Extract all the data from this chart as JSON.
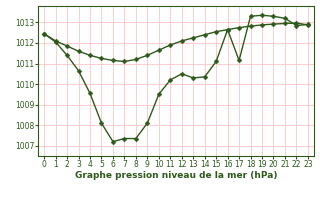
{
  "bg_color": "#ffffff",
  "grid_color": "#ffcccc",
  "line_color": "#2d5a1b",
  "line1_x": [
    0,
    1,
    2,
    3,
    4,
    5,
    6,
    7,
    8,
    9,
    10,
    11,
    12,
    13,
    14,
    15,
    16,
    17,
    18,
    19,
    20,
    21,
    22,
    23
  ],
  "line1_y": [
    1012.45,
    1012.1,
    1011.85,
    1011.6,
    1011.4,
    1011.25,
    1011.15,
    1011.1,
    1011.2,
    1011.4,
    1011.65,
    1011.9,
    1012.1,
    1012.25,
    1012.4,
    1012.55,
    1012.65,
    1012.75,
    1012.82,
    1012.88,
    1012.92,
    1012.95,
    1012.97,
    1012.88
  ],
  "line2_x": [
    0,
    1,
    2,
    3,
    4,
    5,
    6,
    7,
    8,
    9,
    10,
    11,
    12,
    13,
    14,
    15,
    16,
    17,
    18,
    19,
    20,
    21,
    22,
    23
  ],
  "line2_y": [
    1012.45,
    1012.05,
    1011.4,
    1010.65,
    1009.55,
    1008.1,
    1007.2,
    1007.35,
    1007.35,
    1008.1,
    1009.5,
    1010.2,
    1010.5,
    1010.3,
    1010.35,
    1011.1,
    1012.65,
    1011.15,
    1013.3,
    1013.35,
    1013.3,
    1013.2,
    1012.85,
    1012.9
  ],
  "xlabel": "Graphe pression niveau de la mer (hPa)",
  "ylim": [
    1006.5,
    1013.8
  ],
  "xlim": [
    -0.5,
    23.5
  ],
  "yticks": [
    1007,
    1008,
    1009,
    1010,
    1011,
    1012,
    1013
  ],
  "xticks": [
    0,
    1,
    2,
    3,
    4,
    5,
    6,
    7,
    8,
    9,
    10,
    11,
    12,
    13,
    14,
    15,
    16,
    17,
    18,
    19,
    20,
    21,
    22,
    23
  ],
  "markersize": 2.5,
  "linewidth": 1.0,
  "xlabel_fontsize": 6.5,
  "tick_fontsize": 5.5
}
